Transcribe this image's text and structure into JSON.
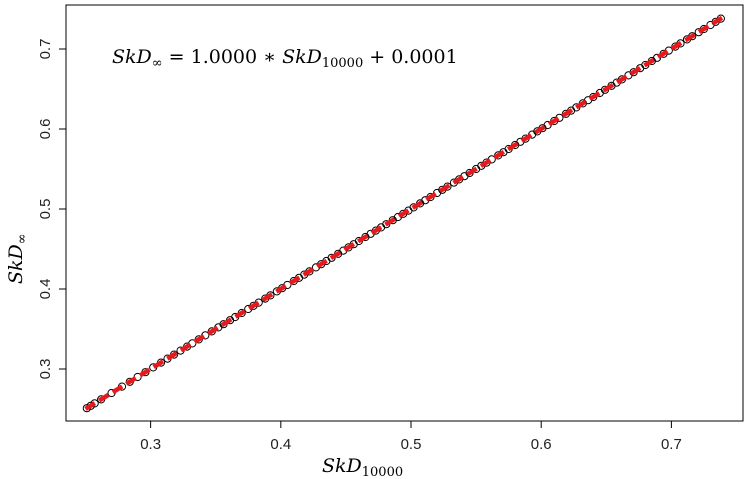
{
  "chart_data": {
    "type": "scatter",
    "annotation": {
      "lhs_base": "SkD",
      "lhs_sub": "∞",
      "rhs_prefix": " = 1.0000 ∗ ",
      "rhs_base": "SkD",
      "rhs_sub": "10000",
      "rhs_suffix": " + 0.0001"
    },
    "xlabel": {
      "base": "SkD",
      "sub": "10000"
    },
    "ylabel": {
      "base": "SkD",
      "sub": "∞"
    },
    "xlim": [
      0.235,
      0.755
    ],
    "ylim": [
      0.235,
      0.755
    ],
    "xticks": [
      0.3,
      0.4,
      0.5,
      0.6,
      0.7
    ],
    "yticks": [
      0.3,
      0.4,
      0.5,
      0.6,
      0.7
    ],
    "xtick_labels": [
      "0.3",
      "0.4",
      "0.5",
      "0.6",
      "0.7"
    ],
    "ytick_labels": [
      "0.3",
      "0.4",
      "0.5",
      "0.6",
      "0.7"
    ],
    "grid": false,
    "fit_line": {
      "slope": 1.0,
      "intercept": 0.0001,
      "color": "#e8191c",
      "style": "dashed",
      "x_range": [
        0.25,
        0.74
      ]
    },
    "series": [
      {
        "marker": "open-circle",
        "color": "#000000",
        "x": [
          0.251,
          0.254,
          0.257,
          0.262,
          0.27,
          0.278,
          0.284,
          0.29,
          0.296,
          0.302,
          0.308,
          0.313,
          0.318,
          0.323,
          0.328,
          0.332,
          0.337,
          0.342,
          0.347,
          0.352,
          0.356,
          0.361,
          0.365,
          0.37,
          0.375,
          0.379,
          0.383,
          0.388,
          0.392,
          0.397,
          0.401,
          0.405,
          0.41,
          0.414,
          0.418,
          0.422,
          0.427,
          0.431,
          0.435,
          0.439,
          0.444,
          0.448,
          0.452,
          0.456,
          0.46,
          0.465,
          0.469,
          0.473,
          0.477,
          0.481,
          0.486,
          0.49,
          0.494,
          0.498,
          0.502,
          0.507,
          0.511,
          0.515,
          0.52,
          0.524,
          0.528,
          0.533,
          0.537,
          0.541,
          0.545,
          0.55,
          0.554,
          0.558,
          0.562,
          0.567,
          0.571,
          0.575,
          0.58,
          0.584,
          0.588,
          0.593,
          0.597,
          0.601,
          0.605,
          0.61,
          0.614,
          0.619,
          0.623,
          0.627,
          0.632,
          0.636,
          0.64,
          0.645,
          0.649,
          0.654,
          0.658,
          0.662,
          0.667,
          0.671,
          0.676,
          0.68,
          0.685,
          0.689,
          0.694,
          0.698,
          0.703,
          0.707,
          0.712,
          0.716,
          0.721,
          0.725,
          0.73,
          0.734,
          0.738
        ],
        "y": [
          0.251,
          0.254,
          0.257,
          0.262,
          0.27,
          0.278,
          0.284,
          0.29,
          0.296,
          0.302,
          0.308,
          0.313,
          0.318,
          0.323,
          0.328,
          0.332,
          0.337,
          0.342,
          0.347,
          0.352,
          0.356,
          0.361,
          0.365,
          0.37,
          0.375,
          0.379,
          0.383,
          0.388,
          0.392,
          0.397,
          0.401,
          0.405,
          0.41,
          0.414,
          0.418,
          0.422,
          0.427,
          0.431,
          0.435,
          0.439,
          0.444,
          0.448,
          0.452,
          0.456,
          0.46,
          0.465,
          0.469,
          0.473,
          0.477,
          0.481,
          0.486,
          0.49,
          0.494,
          0.498,
          0.502,
          0.507,
          0.511,
          0.515,
          0.52,
          0.524,
          0.528,
          0.533,
          0.537,
          0.541,
          0.545,
          0.55,
          0.554,
          0.558,
          0.562,
          0.567,
          0.571,
          0.575,
          0.58,
          0.584,
          0.588,
          0.593,
          0.597,
          0.601,
          0.605,
          0.61,
          0.614,
          0.619,
          0.623,
          0.627,
          0.632,
          0.636,
          0.64,
          0.645,
          0.649,
          0.654,
          0.658,
          0.662,
          0.667,
          0.671,
          0.676,
          0.68,
          0.685,
          0.689,
          0.694,
          0.698,
          0.703,
          0.707,
          0.712,
          0.716,
          0.721,
          0.725,
          0.73,
          0.734,
          0.738
        ]
      }
    ]
  }
}
